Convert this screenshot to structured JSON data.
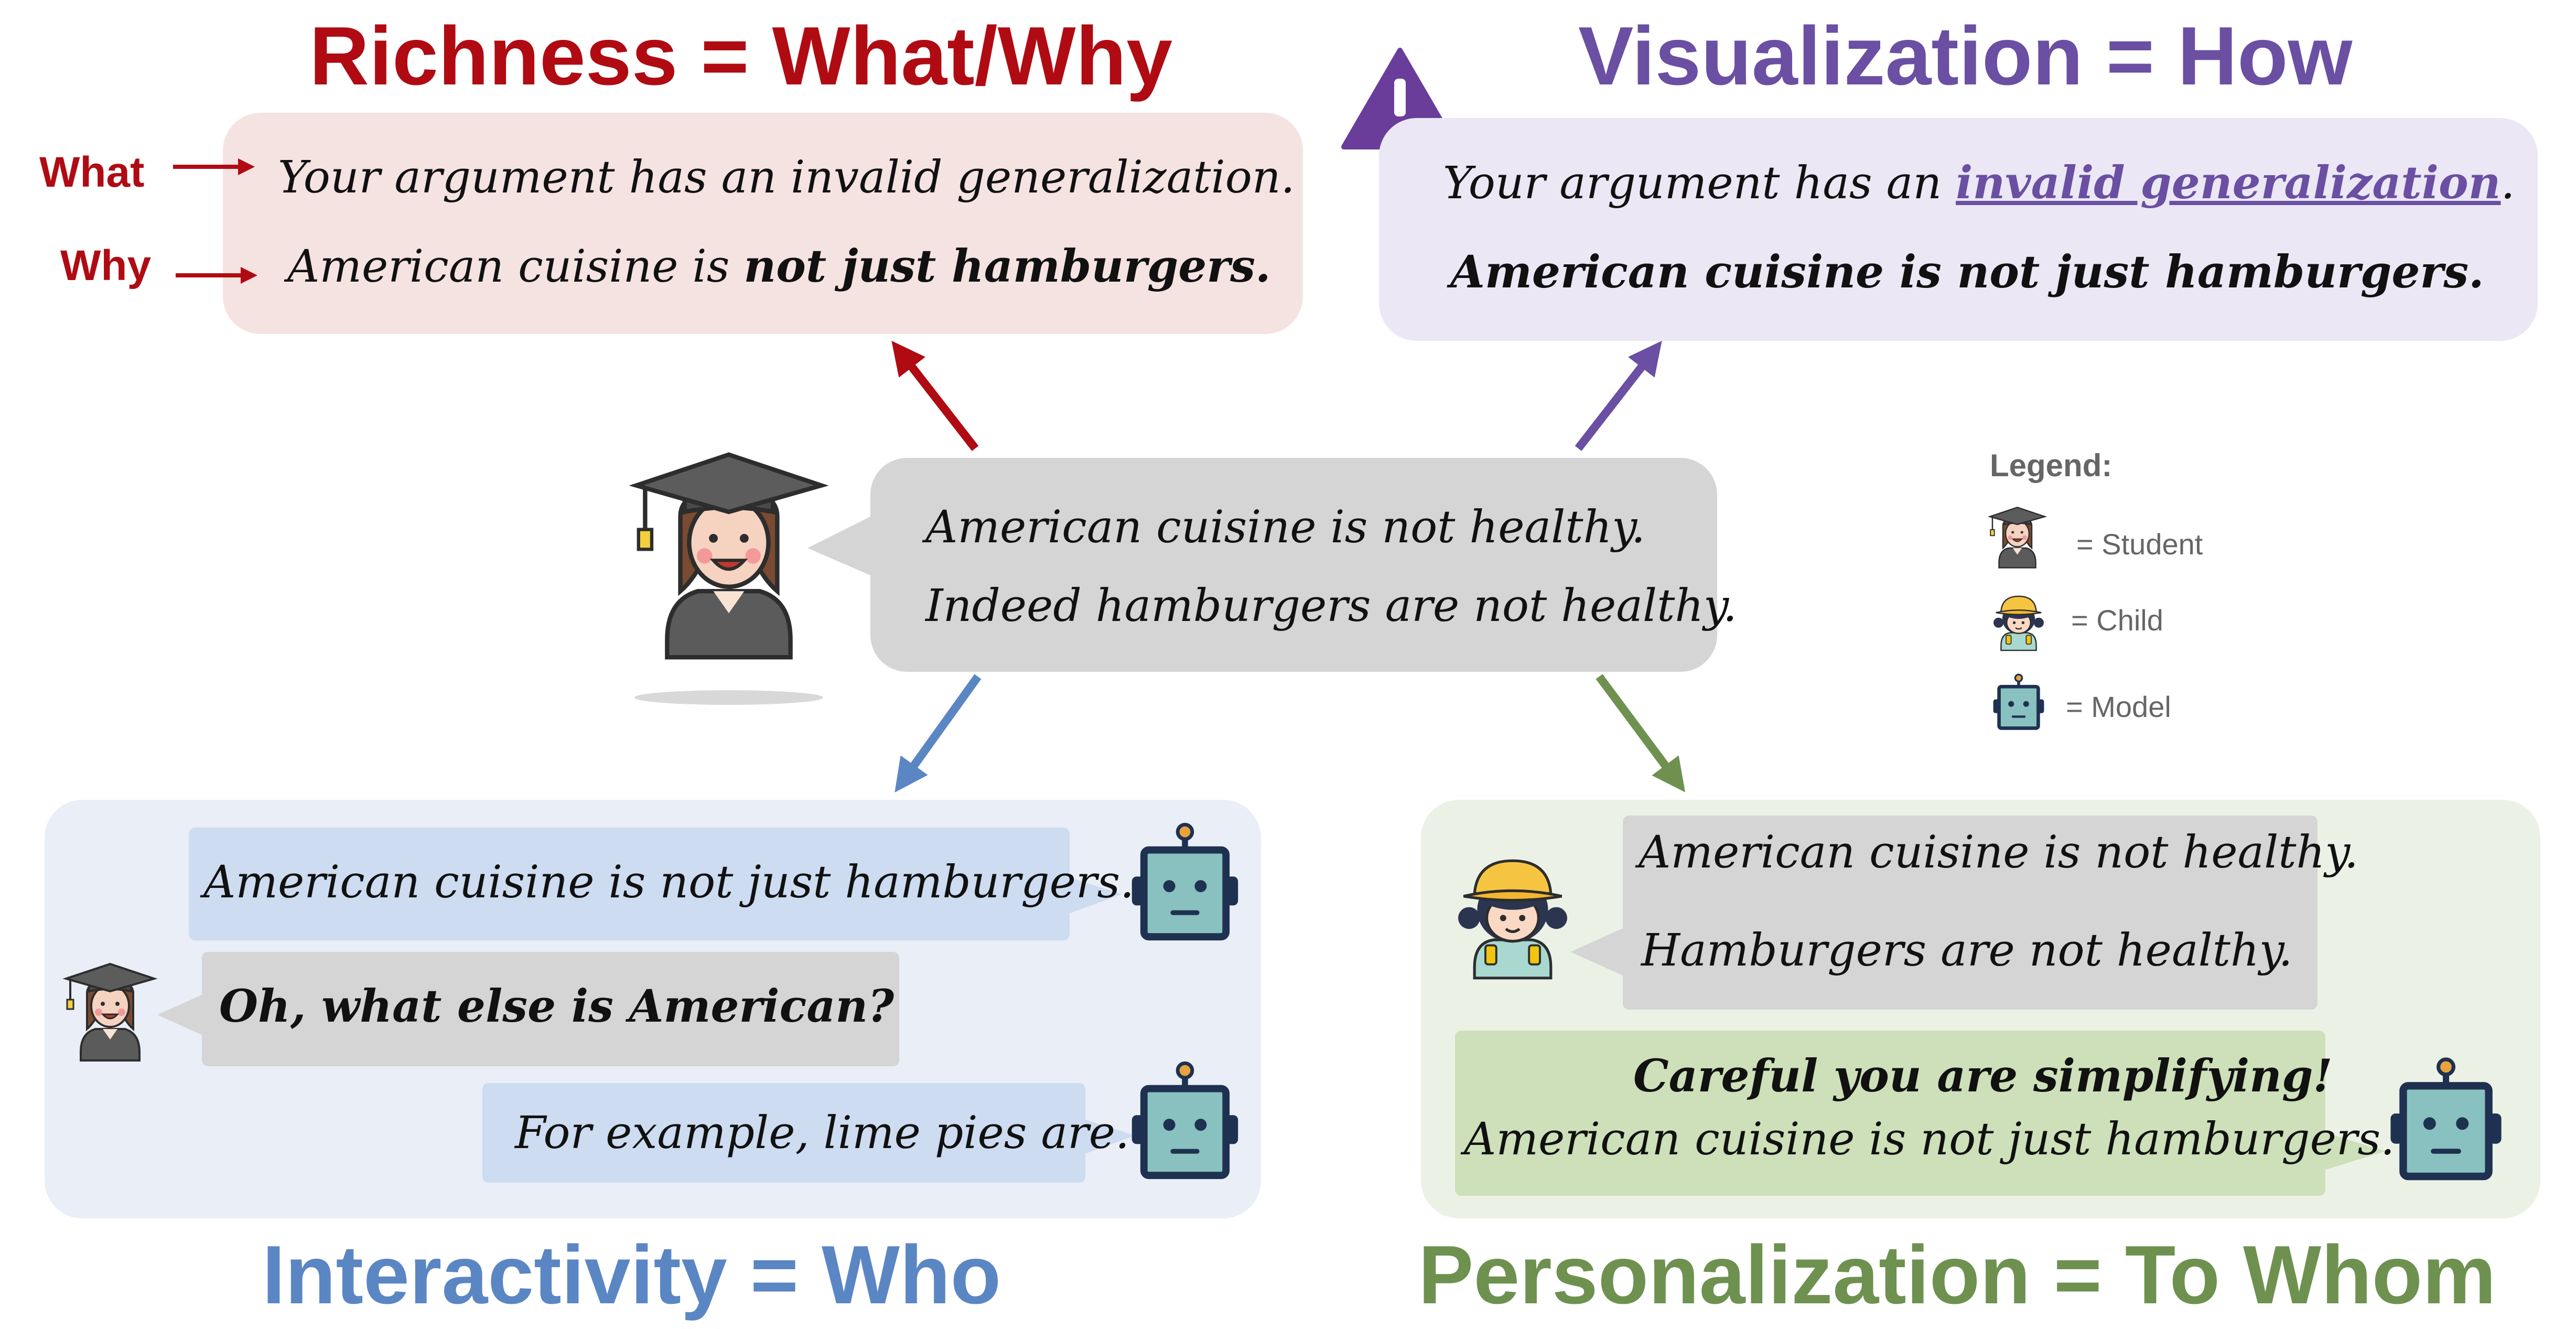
{
  "richness": {
    "title": "Richness = What/Why",
    "what_label": "What",
    "why_label": "Why",
    "line1": "Your argument has an invalid generalization.",
    "line2_pre": "American cuisine is ",
    "line2_bold": "not just hamburgers."
  },
  "visualization": {
    "title": "Visualization = How",
    "line1_pre": "Your argument has an ",
    "line1_link": "invalid generalization",
    "line1_post": ".",
    "line2": "American cuisine is not just hamburgers."
  },
  "center": {
    "line1": "American cuisine is not healthy.",
    "line2": "Indeed hamburgers are not healthy."
  },
  "interactivity": {
    "title": "Interactivity = Who",
    "model_msg1": "American cuisine is not just hamburgers.",
    "student_msg": "Oh, what else is American?",
    "model_msg2": "For example, lime pies are."
  },
  "personalization": {
    "title": "Personalization = To Whom",
    "child_line1": "American cuisine is not healthy.",
    "child_line2": "Hamburgers are not healthy.",
    "model_bold": "Careful you are simplifying!",
    "model_line": "American cuisine is not just hamburgers."
  },
  "legend": {
    "title": "Legend:",
    "student": "= Student",
    "child": "= Child",
    "model": "= Model"
  },
  "icons": {
    "warning": "warning-icon",
    "student": "student-graduate-icon",
    "child": "child-icon",
    "model": "robot-icon"
  },
  "colors": {
    "richness": "#b00b13",
    "visualization": "#6a4fa3",
    "interactivity": "#5b86c4",
    "personalization": "#6e9150",
    "richness_box": "#f5e3e1",
    "visualization_box": "#ebe7f4",
    "interactivity_box": "#e9eef7",
    "personalization_box": "#ecf1e6",
    "gray_bubble": "#d5d5d5",
    "blue_bubble": "#cddcf0",
    "green_bubble": "#cde0b9"
  }
}
